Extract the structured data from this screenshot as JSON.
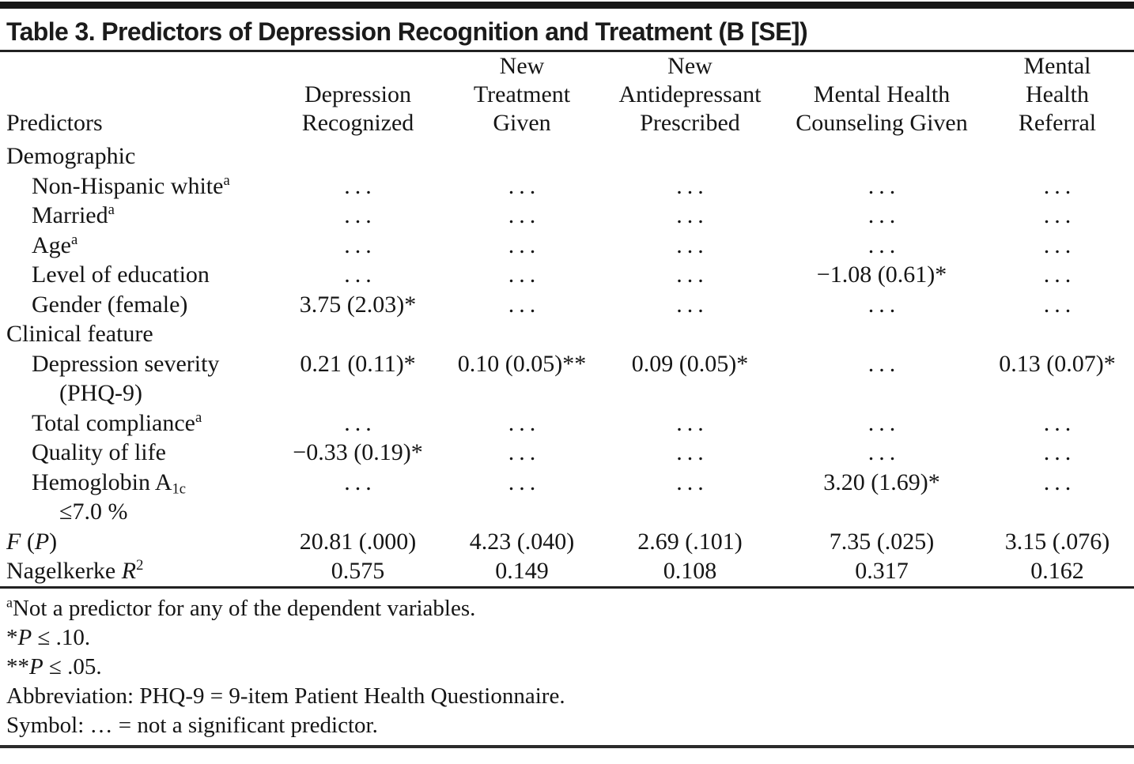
{
  "title": "Table 3. Predictors of Depression Recognition and Treatment (B [SE])",
  "table": {
    "col_headers": [
      {
        "lines": [
          "Predictors"
        ],
        "align": "left"
      },
      {
        "lines": [
          "Depression",
          "Recognized"
        ]
      },
      {
        "lines": [
          "New",
          "Treatment",
          "Given"
        ]
      },
      {
        "lines": [
          "New",
          "Antidepressant",
          "Prescribed"
        ]
      },
      {
        "lines": [
          "Mental Health",
          "Counseling Given"
        ]
      },
      {
        "lines": [
          "Mental",
          "Health",
          "Referral"
        ]
      }
    ],
    "rows": [
      {
        "label": [
          {
            "v": "Demographic"
          }
        ],
        "indent": 0,
        "values": [
          "",
          "",
          "",
          "",
          ""
        ]
      },
      {
        "label": [
          {
            "v": "Non-Hispanic white"
          },
          {
            "v": "a",
            "style": "sup"
          }
        ],
        "indent": 1,
        "values": [
          "…",
          "…",
          "…",
          "…",
          "…"
        ]
      },
      {
        "label": [
          {
            "v": "Married"
          },
          {
            "v": "a",
            "style": "sup"
          }
        ],
        "indent": 1,
        "values": [
          "…",
          "…",
          "…",
          "…",
          "…"
        ]
      },
      {
        "label": [
          {
            "v": "Age"
          },
          {
            "v": "a",
            "style": "sup"
          }
        ],
        "indent": 1,
        "values": [
          "…",
          "…",
          "…",
          "…",
          "…"
        ]
      },
      {
        "label": [
          {
            "v": "Level of education"
          }
        ],
        "indent": 1,
        "values": [
          "…",
          "…",
          "…",
          "−1.08 (0.61)*",
          "…"
        ]
      },
      {
        "label": [
          {
            "v": "Gender (female)"
          }
        ],
        "indent": 1,
        "values": [
          "3.75 (2.03)*",
          "…",
          "…",
          "…",
          "…"
        ]
      },
      {
        "label": [
          {
            "v": "Clinical feature"
          }
        ],
        "indent": 0,
        "values": [
          "",
          "",
          "",
          "",
          ""
        ]
      },
      {
        "label": [
          {
            "v": "Depression severity"
          }
        ],
        "label2": [
          {
            "v": "(PHQ-9)"
          }
        ],
        "indent": 1,
        "values": [
          "0.21 (0.11)*",
          "0.10 (0.05)**",
          "0.09 (0.05)*",
          "…",
          "0.13 (0.07)*"
        ]
      },
      {
        "label": [
          {
            "v": "Total compliance"
          },
          {
            "v": "a",
            "style": "sup"
          }
        ],
        "indent": 1,
        "values": [
          "…",
          "…",
          "…",
          "…",
          "…"
        ]
      },
      {
        "label": [
          {
            "v": "Quality of life"
          }
        ],
        "indent": 1,
        "values": [
          "−0.33 (0.19)*",
          "…",
          "…",
          "…",
          "…"
        ]
      },
      {
        "label": [
          {
            "v": "Hemoglobin A"
          },
          {
            "v": "1c",
            "style": "sub"
          }
        ],
        "label2": [
          {
            "v": "≤7.0 %"
          }
        ],
        "indent": 1,
        "values": [
          "…",
          "…",
          "…",
          "3.20 (1.69)*",
          "…"
        ]
      },
      {
        "label": [
          {
            "v": "F",
            "style": "i"
          },
          {
            "v": " ("
          },
          {
            "v": "P",
            "style": "i"
          },
          {
            "v": ")"
          }
        ],
        "indent": 0,
        "values": [
          "20.81 (.000)",
          "4.23 (.040)",
          "2.69 (.101)",
          "7.35 (.025)",
          "3.15 (.076)"
        ]
      },
      {
        "label": [
          {
            "v": "Nagelkerke "
          },
          {
            "v": "R",
            "style": "i"
          },
          {
            "v": "2",
            "style": "sup"
          }
        ],
        "indent": 0,
        "values": [
          "0.575",
          "0.149",
          "0.108",
          "0.317",
          "0.162"
        ]
      }
    ]
  },
  "footnotes": [
    {
      "parts": [
        {
          "v": "a",
          "style": "sup"
        },
        {
          "v": "Not a predictor for any of the dependent variables."
        }
      ]
    },
    {
      "parts": [
        {
          "v": "*"
        },
        {
          "v": "P",
          "style": "i"
        },
        {
          "v": " ≤ .10."
        }
      ]
    },
    {
      "parts": [
        {
          "v": "**"
        },
        {
          "v": "P",
          "style": "i"
        },
        {
          "v": " ≤ .05."
        }
      ]
    },
    {
      "parts": [
        {
          "v": "Abbreviation: PHQ-9 = 9-item Patient Health Questionnaire."
        }
      ]
    },
    {
      "parts": [
        {
          "v": "Symbol: … = not a significant predictor."
        }
      ]
    }
  ]
}
